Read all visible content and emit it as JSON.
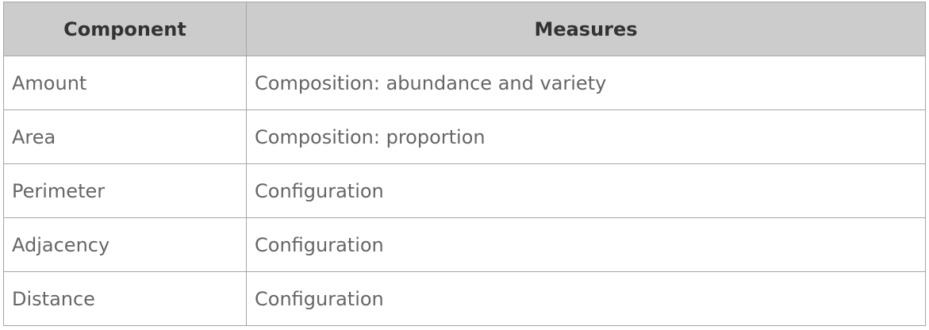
{
  "table": {
    "headers": [
      "Component",
      "Measures"
    ],
    "rows": [
      {
        "component": "Amount",
        "measures": "Composition: abundance and variety"
      },
      {
        "component": "Area",
        "measures": "Composition: proportion"
      },
      {
        "component": "Perimeter",
        "measures": "Configuration"
      },
      {
        "component": "Adjacency",
        "measures": "Configuration"
      },
      {
        "component": "Distance",
        "measures": "Configuration"
      }
    ]
  }
}
